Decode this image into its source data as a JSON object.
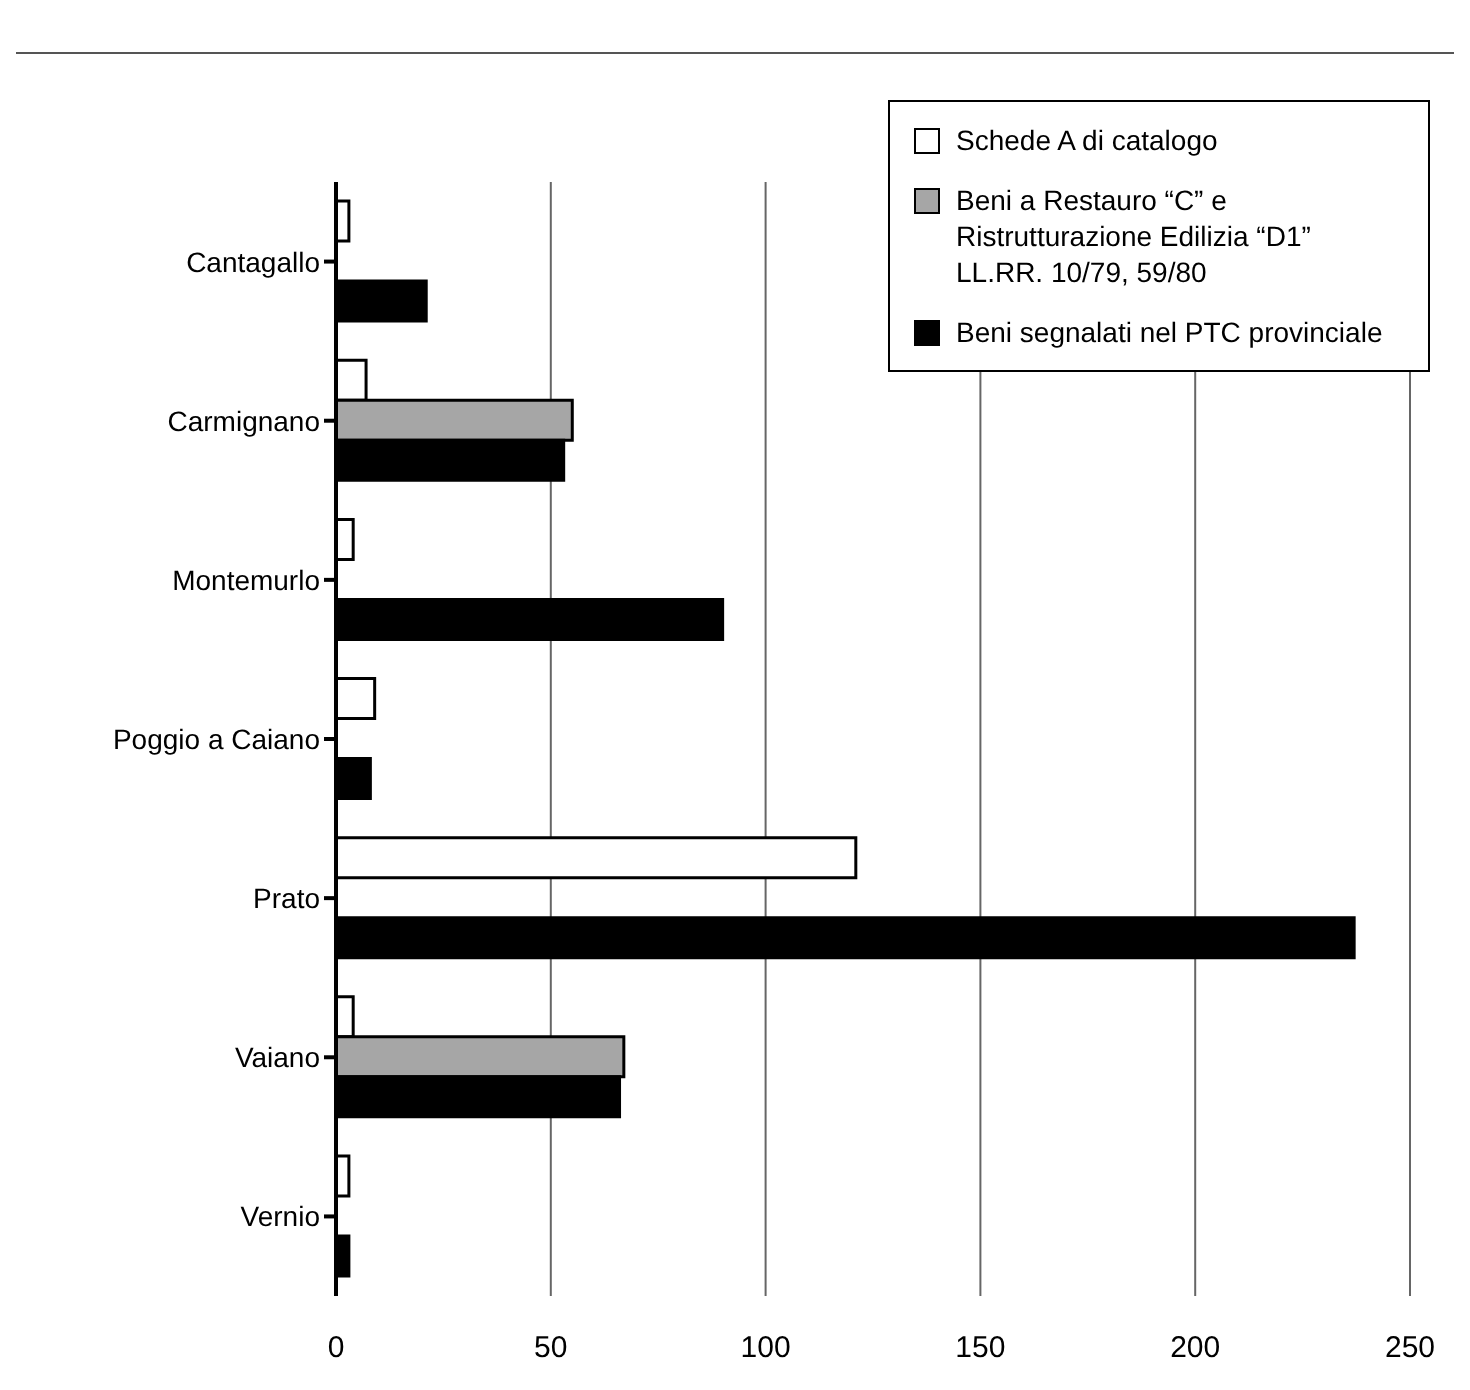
{
  "chart_data": {
    "type": "bar",
    "orientation": "horizontal",
    "categories": [
      "Cantagallo",
      "Carmignano",
      "Montemurlo",
      "Poggio a Caiano",
      "Prato",
      "Vaiano",
      "Vernio"
    ],
    "series": [
      {
        "name": "Schede A di catalogo",
        "color": "#ffffff",
        "values": [
          3,
          7,
          4,
          9,
          121,
          4,
          3
        ]
      },
      {
        "name": "Beni a Restauro “C” e Ristrutturazione Edilizia “D1” LL.RR. 10/79, 59/80",
        "color": "#a6a6a6",
        "values": [
          null,
          55,
          null,
          null,
          null,
          67,
          null
        ]
      },
      {
        "name": "Beni segnalati nel PTC provinciale",
        "color": "#000000",
        "values": [
          21,
          53,
          90,
          8,
          237,
          66,
          3
        ]
      }
    ],
    "xlim": [
      0,
      250
    ],
    "xticks": [
      0,
      50,
      100,
      150,
      200,
      250
    ],
    "grid": "x",
    "legend": "top right"
  }
}
